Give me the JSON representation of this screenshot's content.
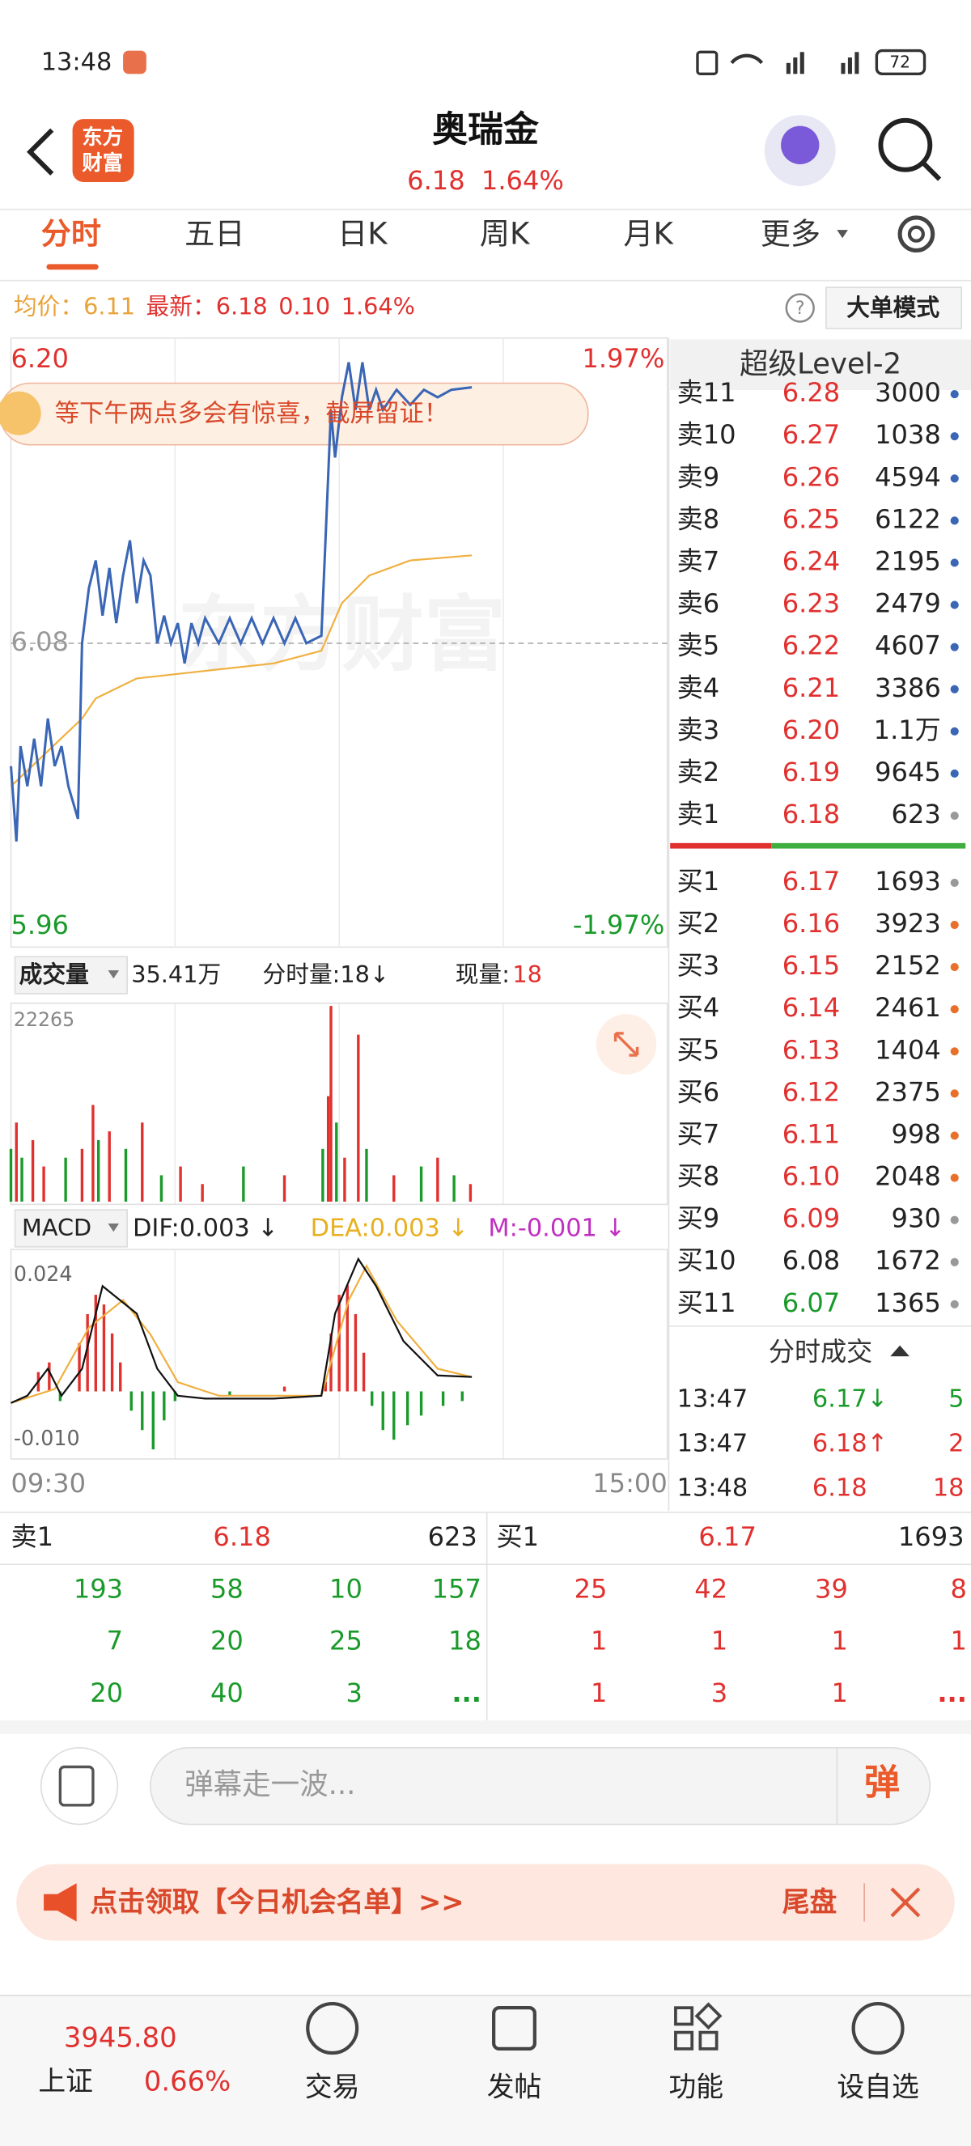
{
  "status_bar": {
    "time": "13:48",
    "battery": "72"
  },
  "header": {
    "logo_lines": [
      "东方",
      "财富"
    ],
    "title": "奥瑞金",
    "price": "6.18",
    "change_pct": "1.64%"
  },
  "tabs": [
    "分时",
    "五日",
    "日K",
    "周K",
    "月K",
    "更多"
  ],
  "info_bar": {
    "avg_label": "均价：",
    "avg": "6.11",
    "last_label": "最新：",
    "last": "6.18",
    "change": "0.10",
    "change_pct": "1.64%",
    "mode_button": "大单模式"
  },
  "price_chart": {
    "banner": "等下午两点多会有惊喜，截屏留证！",
    "watermark": "东方财富",
    "xlim": [
      0,
      240
    ],
    "xticks": [
      {
        "value": 0,
        "label": "09:30"
      },
      {
        "value": 240,
        "label": "15:00"
      }
    ],
    "ylim": [
      5.96,
      6.2
    ],
    "yticks": [
      5.96,
      6.08,
      {
        "value": 6.2,
        "label": "6.20"
      }
    ],
    "y2lim": [
      -1.97,
      1.97
    ],
    "y2ticks": [
      {
        "value": -1.97,
        "label": "-1.97%"
      },
      {
        "value": 1.97,
        "label": "1.97%"
      }
    ],
    "price_color": "#3a66b5",
    "avg_color": "#f0b040",
    "x": [
      0,
      2,
      3.5,
      6,
      8.5,
      11,
      13.5,
      16,
      18.5,
      21,
      24.5,
      26,
      28.5,
      31,
      33.5,
      36,
      38.5,
      41,
      43.5,
      46,
      48.5,
      51,
      53.5,
      56,
      58.5,
      61,
      63.5,
      66,
      68.5,
      71,
      76,
      80,
      84,
      88,
      92,
      96,
      100,
      104,
      108,
      113.5,
      115,
      117,
      118.5,
      121,
      123.5,
      126,
      128.5,
      131,
      133.5,
      136,
      141,
      146,
      151,
      156,
      161,
      168.5
    ],
    "price": [
      6.031,
      6.001,
      6.039,
      6.023,
      6.042,
      6.023,
      6.05,
      6.031,
      6.039,
      6.023,
      6.01,
      6.08,
      6.102,
      6.113,
      6.091,
      6.11,
      6.088,
      6.107,
      6.121,
      6.096,
      6.113,
      6.107,
      6.08,
      6.091,
      6.08,
      6.088,
      6.072,
      6.088,
      6.08,
      6.09,
      6.08,
      6.09,
      6.08,
      6.09,
      6.08,
      6.09,
      6.08,
      6.09,
      6.08,
      6.083,
      6.121,
      6.173,
      6.154,
      6.178,
      6.192,
      6.173,
      6.192,
      6.173,
      6.181,
      6.173,
      6.181,
      6.175,
      6.181,
      6.178,
      6.181,
      6.182
    ],
    "avg_x": [
      0,
      26,
      31,
      46,
      71,
      96,
      113.5,
      121,
      131,
      146,
      168.5
    ],
    "avg": [
      6.023,
      6.05,
      6.058,
      6.066,
      6.069,
      6.072,
      6.077,
      6.096,
      6.107,
      6.113,
      6.115
    ]
  },
  "volume_chart": {
    "label": "成交量",
    "total": "35.41万",
    "minute_volume": "分时量:18↓",
    "current_label": "现量:",
    "current": "18",
    "xlim": [
      0,
      240
    ],
    "ylim": [
      0,
      22265
    ],
    "yticks": [
      22265
    ],
    "x": [
      0,
      2,
      4,
      8,
      12,
      20,
      26,
      30,
      32,
      36,
      42,
      48,
      55,
      62,
      70,
      85,
      100,
      114,
      116,
      117,
      119,
      122,
      127,
      130,
      140,
      150,
      156,
      162,
      168
    ],
    "values": [
      6000,
      9000,
      5000,
      7000,
      4000,
      5000,
      6000,
      11000,
      7000,
      8000,
      6000,
      9000,
      3000,
      4000,
      2000,
      4000,
      3000,
      6000,
      12000,
      22265,
      9000,
      5000,
      19000,
      6000,
      3000,
      4000,
      5000,
      3000,
      2000
    ],
    "colors": [
      "#1a9a2a",
      "#e0312f",
      "#1a9a2a",
      "#e0312f",
      "#e0312f",
      "#1a9a2a",
      "#e0312f",
      "#e0312f",
      "#1a9a2a",
      "#e0312f",
      "#1a9a2a",
      "#e0312f",
      "#1a9a2a",
      "#e0312f",
      "#e0312f",
      "#1a9a2a",
      "#e0312f",
      "#1a9a2a",
      "#e0312f",
      "#e0312f",
      "#1a9a2a",
      "#e0312f",
      "#e0312f",
      "#1a9a2a",
      "#e0312f",
      "#1a9a2a",
      "#e0312f",
      "#1a9a2a",
      "#e0312f"
    ]
  },
  "macd_chart": {
    "label": "MACD",
    "dif_label": "DIF:0.003 ↓",
    "dea_label": "DEA:0.003 ↓",
    "m_label": "M:-0.001 ↓",
    "xlim": [
      0,
      240
    ],
    "ylim": [
      -0.0137,
      0.0288
    ],
    "yticks": [
      {
        "value": -0.01,
        "label": "-0.010"
      },
      0.024
    ],
    "dif_color": "#111111",
    "dea_color": "#f0b040",
    "up_color": "#e0312f",
    "down_color": "#1a9a2a",
    "dif_x": [
      0,
      6,
      13.5,
      18.5,
      26,
      33.5,
      38.5,
      46,
      53.5,
      61,
      71,
      96,
      113.5,
      118.5,
      127,
      133.5,
      143.5,
      156,
      168.5
    ],
    "dif": [
      -0.0024,
      -0.0009,
      0.0047,
      -0.0009,
      0.0047,
      0.0218,
      0.0195,
      0.0161,
      0.0047,
      -0.0009,
      -0.0015,
      -0.0015,
      -0.0009,
      0.0161,
      0.0274,
      0.0218,
      0.0104,
      0.0033,
      0.003
    ],
    "dea_x": [
      0,
      16,
      28.5,
      41,
      51,
      61,
      76,
      113.5,
      123.5,
      130,
      141,
      156,
      168.5
    ],
    "dea": [
      -0.0024,
      0.0005,
      0.0132,
      0.0189,
      0.0118,
      0.0019,
      -0.0009,
      -0.0009,
      0.0189,
      0.026,
      0.0147,
      0.0047,
      0.003
    ],
    "bar_x": [
      10,
      14,
      18,
      25,
      28,
      31,
      34,
      37,
      40,
      44,
      48,
      52,
      56,
      60,
      80,
      100,
      115,
      117,
      120,
      123,
      126,
      129,
      132,
      136,
      140,
      145,
      150,
      158,
      165
    ],
    "bar_values": [
      0.004,
      0.006,
      -0.002,
      0.01,
      0.016,
      0.02,
      0.018,
      0.012,
      0.006,
      -0.004,
      -0.008,
      -0.012,
      -0.006,
      -0.002,
      -0.001,
      0.001,
      0.002,
      0.012,
      0.02,
      0.022,
      0.016,
      0.008,
      -0.003,
      -0.008,
      -0.01,
      -0.007,
      -0.005,
      -0.003,
      -0.002
    ]
  },
  "level2": {
    "title": "超级Level-2",
    "sells": [
      {
        "label": "卖11",
        "price": "6.28",
        "volume": "3000",
        "price_color": "#e0312f",
        "dot": "#3a66b5"
      },
      {
        "label": "卖10",
        "price": "6.27",
        "volume": "1038",
        "price_color": "#e0312f",
        "dot": "#3a66b5"
      },
      {
        "label": "卖9",
        "price": "6.26",
        "volume": "4594",
        "price_color": "#e0312f",
        "dot": "#3a66b5"
      },
      {
        "label": "卖8",
        "price": "6.25",
        "volume": "6122",
        "price_color": "#e0312f",
        "dot": "#3a66b5"
      },
      {
        "label": "卖7",
        "price": "6.24",
        "volume": "2195",
        "price_color": "#e0312f",
        "dot": "#3a66b5"
      },
      {
        "label": "卖6",
        "price": "6.23",
        "volume": "2479",
        "price_color": "#e0312f",
        "dot": "#3a66b5"
      },
      {
        "label": "卖5",
        "price": "6.22",
        "volume": "4607",
        "price_color": "#e0312f",
        "dot": "#3a66b5"
      },
      {
        "label": "卖4",
        "price": "6.21",
        "volume": "3386",
        "price_color": "#e0312f",
        "dot": "#3a66b5"
      },
      {
        "label": "卖3",
        "price": "6.20",
        "volume": "1.1万",
        "price_color": "#e0312f",
        "dot": "#3a66b5"
      },
      {
        "label": "卖2",
        "price": "6.19",
        "volume": "9645",
        "price_color": "#e0312f",
        "dot": "#3a66b5"
      },
      {
        "label": "卖1",
        "price": "6.18",
        "volume": "623",
        "price_color": "#e0312f",
        "dot": "#999999"
      }
    ],
    "buys": [
      {
        "label": "买1",
        "price": "6.17",
        "volume": "1693",
        "price_color": "#e0312f",
        "dot": "#999999"
      },
      {
        "label": "买2",
        "price": "6.16",
        "volume": "3923",
        "price_color": "#e0312f",
        "dot": "#e8702a"
      },
      {
        "label": "买3",
        "price": "6.15",
        "volume": "2152",
        "price_color": "#e0312f",
        "dot": "#e8702a"
      },
      {
        "label": "买4",
        "price": "6.14",
        "volume": "2461",
        "price_color": "#e0312f",
        "dot": "#e8702a"
      },
      {
        "label": "买5",
        "price": "6.13",
        "volume": "1404",
        "price_color": "#e0312f",
        "dot": "#e8702a"
      },
      {
        "label": "买6",
        "price": "6.12",
        "volume": "2375",
        "price_color": "#e0312f",
        "dot": "#e8702a"
      },
      {
        "label": "买7",
        "price": "6.11",
        "volume": "998",
        "price_color": "#e0312f",
        "dot": "#e8702a"
      },
      {
        "label": "买8",
        "price": "6.10",
        "volume": "2048",
        "price_color": "#e0312f",
        "dot": "#e8702a"
      },
      {
        "label": "买9",
        "price": "6.09",
        "volume": "930",
        "price_color": "#e0312f",
        "dot": "#999999"
      },
      {
        "label": "买10",
        "price": "6.08",
        "volume": "1672",
        "price_color": "#222222",
        "dot": "#999999"
      },
      {
        "label": "买11",
        "price": "6.07",
        "volume": "1365",
        "price_color": "#1a9a2a",
        "dot": "#999999"
      }
    ],
    "trades_title": "分时成交",
    "trades": [
      {
        "time": "13:47",
        "price": "6.17↓",
        "volume": "5",
        "color": "#1a9a2a"
      },
      {
        "time": "13:47",
        "price": "6.18↑",
        "volume": "2",
        "color": "#e0312f"
      },
      {
        "time": "13:48",
        "price": "6.18",
        "volume": "18",
        "color": "#e0312f"
      }
    ]
  },
  "queue": {
    "sell": {
      "label": "卖1",
      "price": "6.18",
      "volume": "623",
      "rows": [
        [
          "193",
          "58",
          "10",
          "157"
        ],
        [
          "7",
          "20",
          "25",
          "18"
        ],
        [
          "20",
          "40",
          "3",
          "..."
        ]
      ]
    },
    "buy": {
      "label": "买1",
      "price": "6.17",
      "volume": "1693",
      "rows": [
        [
          "25",
          "42",
          "39",
          "8"
        ],
        [
          "1",
          "1",
          "1",
          "1"
        ],
        [
          "1",
          "3",
          "1",
          "..."
        ]
      ]
    }
  },
  "comment_bar": {
    "placeholder": "弹幕走一波...",
    "send": "弹"
  },
  "promo": {
    "text": "点击领取【今日机会名单】>>",
    "side": "尾盘"
  },
  "bottom_nav": {
    "index_value": "3945.80",
    "index_name": "上证",
    "index_change": "0.66%",
    "items": [
      "交易",
      "发帖",
      "功能",
      "设自选"
    ]
  }
}
